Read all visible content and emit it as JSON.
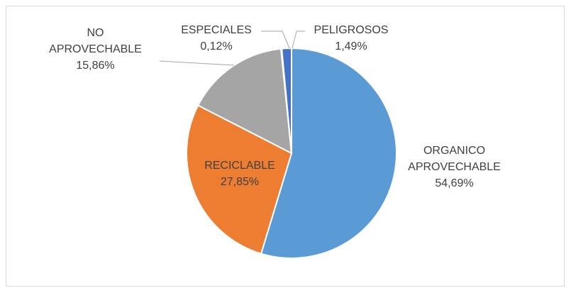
{
  "chart_data": {
    "type": "pie",
    "categories": [
      "ORGANICO APROVECHABLE",
      "RECICLABLE",
      "NO APROVECHABLE",
      "ESPECIALES",
      "PELIGROSOS"
    ],
    "values": [
      54.69,
      27.85,
      15.86,
      0.12,
      1.49
    ],
    "value_labels": [
      "54,69%",
      "27,85%",
      "15,86%",
      "0,12%",
      "1,49%"
    ],
    "colors": [
      "#5b9bd5",
      "#ed7d31",
      "#a5a5a5",
      "#ffc000",
      "#4472c4"
    ]
  }
}
